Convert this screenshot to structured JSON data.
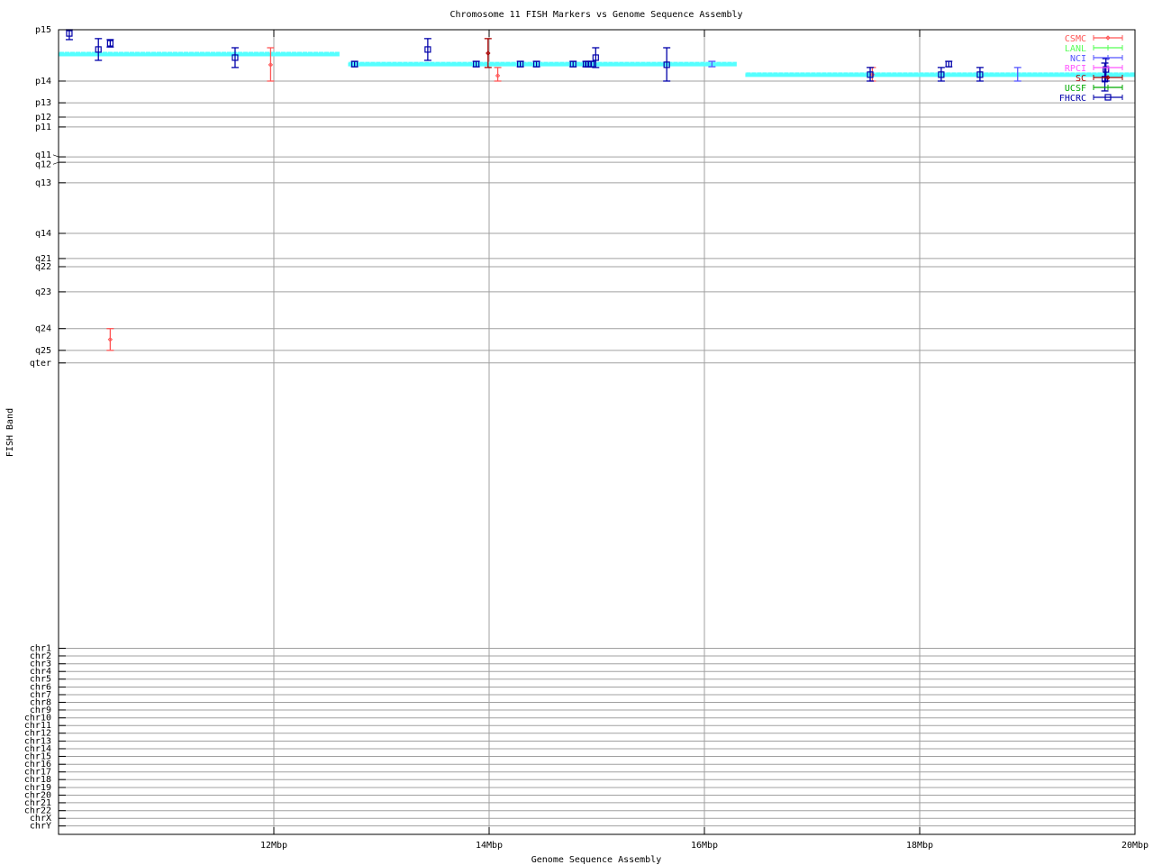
{
  "chart_data": {
    "type": "scatter",
    "title": "Chromosome 11 FISH Markers vs Genome Sequence Assembly",
    "xlabel": "Genome Sequence Assembly",
    "ylabel": "FISH Band",
    "xlim": [
      10,
      20
    ],
    "ylim": [
      0,
      326
    ],
    "y_reversed": true,
    "grid": true,
    "legend_position": "top-right",
    "xticks": [
      {
        "value": 12,
        "label": "12Mbp"
      },
      {
        "value": 14,
        "label": "14Mbp"
      },
      {
        "value": 16,
        "label": "16Mbp"
      },
      {
        "value": 18,
        "label": "18Mbp"
      },
      {
        "value": 20,
        "label": "20Mbp"
      }
    ],
    "yticks": [
      {
        "value": 0,
        "label": "p15"
      },
      {
        "value": 20.8,
        "label": "p14"
      },
      {
        "value": 29.6,
        "label": "p13"
      },
      {
        "value": 35.4,
        "label": "p12"
      },
      {
        "value": 39.4,
        "label": "p11"
      },
      {
        "value": 51.5,
        "label": "q11"
      },
      {
        "value": 53.7,
        "label": "q12"
      },
      {
        "value": 62.0,
        "label": "q13"
      },
      {
        "value": 82.5,
        "label": "q14"
      },
      {
        "value": 92.7,
        "label": "q21"
      },
      {
        "value": 96.0,
        "label": "q22"
      },
      {
        "value": 106.2,
        "label": "q23"
      },
      {
        "value": 121.1,
        "label": "q24"
      },
      {
        "value": 129.9,
        "label": "q25"
      },
      {
        "value": 135.0,
        "label": "qter"
      },
      {
        "value": 250.6,
        "label": "chr1"
      },
      {
        "value": 253.7,
        "label": "chr2"
      },
      {
        "value": 256.9,
        "label": "chr3"
      },
      {
        "value": 260.0,
        "label": "chr4"
      },
      {
        "value": 263.1,
        "label": "chr5"
      },
      {
        "value": 266.3,
        "label": "chr6"
      },
      {
        "value": 269.4,
        "label": "chr7"
      },
      {
        "value": 272.5,
        "label": "chr8"
      },
      {
        "value": 275.6,
        "label": "chr9"
      },
      {
        "value": 278.8,
        "label": "chr10"
      },
      {
        "value": 281.9,
        "label": "chr11"
      },
      {
        "value": 285.0,
        "label": "chr12"
      },
      {
        "value": 288.2,
        "label": "chr13"
      },
      {
        "value": 291.3,
        "label": "chr14"
      },
      {
        "value": 294.4,
        "label": "chr15"
      },
      {
        "value": 297.6,
        "label": "chr16"
      },
      {
        "value": 300.7,
        "label": "chr17"
      },
      {
        "value": 303.8,
        "label": "chr18"
      },
      {
        "value": 307.0,
        "label": "chr19"
      },
      {
        "value": 310.1,
        "label": "chr20"
      },
      {
        "value": 313.2,
        "label": "chr21"
      },
      {
        "value": 316.4,
        "label": "chr22"
      },
      {
        "value": 319.5,
        "label": "chrX"
      },
      {
        "value": 322.6,
        "label": "chrY"
      }
    ],
    "band_segments": {
      "color": "#55ffff",
      "segments": [
        {
          "x": [
            10.0,
            12.61
          ],
          "y": 9.85
        },
        {
          "x": [
            12.69,
            16.3
          ],
          "y": 13.9
        },
        {
          "x": [
            16.38,
            20.0
          ],
          "y": 18.2
        }
      ]
    },
    "series": [
      {
        "name": "CSMC",
        "color": "#ff5555",
        "marker": "diamond",
        "points": [
          {
            "x": 11.97,
            "y": 14.2,
            "ylow": 7.3,
            "yhigh": 20.8
          },
          {
            "x": 14.08,
            "y": 18.6,
            "ylow": 15.3,
            "yhigh": 20.8
          },
          {
            "x": 17.56,
            "y": 18.2,
            "ylow": 15.3,
            "yhigh": 20.8
          },
          {
            "x": 10.48,
            "y": 125.5,
            "ylow": 121.1,
            "yhigh": 129.9
          }
        ]
      },
      {
        "name": "LANL",
        "color": "#55ff55",
        "marker": "tick",
        "points": []
      },
      {
        "name": "NCI",
        "color": "#5555ff",
        "marker": "tick",
        "points": [
          {
            "x": 16.07,
            "y": 13.9,
            "ylow": 12.8,
            "yhigh": 15.0
          },
          {
            "x": 18.91,
            "y": 18.2,
            "ylow": 15.3,
            "yhigh": 20.8
          }
        ]
      },
      {
        "name": "RPCI",
        "color": "#ff55ff",
        "marker": "tick",
        "points": []
      },
      {
        "name": "SC",
        "color": "#aa0000",
        "marker": "diamond",
        "points": [
          {
            "x": 13.99,
            "y": 9.5,
            "ylow": 3.6,
            "yhigh": 15.3
          }
        ]
      },
      {
        "name": "UCSF",
        "color": "#00aa00",
        "marker": "tick",
        "points": []
      },
      {
        "name": "FHCRC",
        "color": "#0000aa",
        "marker": "square",
        "points": [
          {
            "x": 10.1,
            "y": 1.5,
            "ylow": 0.0,
            "yhigh": 4.0
          },
          {
            "x": 10.37,
            "y": 8.0,
            "ylow": 3.6,
            "yhigh": 12.4
          },
          {
            "x": 10.48,
            "y": 5.5,
            "ylow": 4.0,
            "yhigh": 7.0
          },
          {
            "x": 11.64,
            "y": 11.3,
            "ylow": 7.3,
            "yhigh": 15.3
          },
          {
            "x": 12.75,
            "y": 13.9,
            "ylow": 12.8,
            "yhigh": 15.0
          },
          {
            "x": 13.43,
            "y": 8.0,
            "ylow": 3.6,
            "yhigh": 12.4
          },
          {
            "x": 13.88,
            "y": 13.9,
            "ylow": 12.8,
            "yhigh": 15.0
          },
          {
            "x": 14.29,
            "y": 13.9,
            "ylow": 12.8,
            "yhigh": 15.0
          },
          {
            "x": 14.44,
            "y": 13.9,
            "ylow": 12.8,
            "yhigh": 15.0
          },
          {
            "x": 14.78,
            "y": 13.9,
            "ylow": 12.8,
            "yhigh": 15.0
          },
          {
            "x": 14.9,
            "y": 13.9,
            "ylow": 12.8,
            "yhigh": 15.0
          },
          {
            "x": 14.92,
            "y": 13.9,
            "ylow": 12.8,
            "yhigh": 15.0
          },
          {
            "x": 14.95,
            "y": 13.9,
            "ylow": 12.8,
            "yhigh": 15.0
          },
          {
            "x": 14.99,
            "y": 11.3,
            "ylow": 7.3,
            "yhigh": 15.3
          },
          {
            "x": 15.65,
            "y": 14.2,
            "ylow": 7.3,
            "yhigh": 20.8
          },
          {
            "x": 17.54,
            "y": 18.2,
            "ylow": 15.3,
            "yhigh": 20.8
          },
          {
            "x": 18.2,
            "y": 18.2,
            "ylow": 15.3,
            "yhigh": 20.8
          },
          {
            "x": 18.27,
            "y": 13.9,
            "ylow": 12.8,
            "yhigh": 15.0
          },
          {
            "x": 18.56,
            "y": 18.2,
            "ylow": 15.3,
            "yhigh": 20.8
          },
          {
            "x": 19.73,
            "y": 16.1,
            "ylow": 11.7,
            "yhigh": 20.8
          },
          {
            "x": 19.72,
            "y": 20.0,
            "ylow": 13.5,
            "yhigh": 24.8
          }
        ]
      }
    ]
  }
}
